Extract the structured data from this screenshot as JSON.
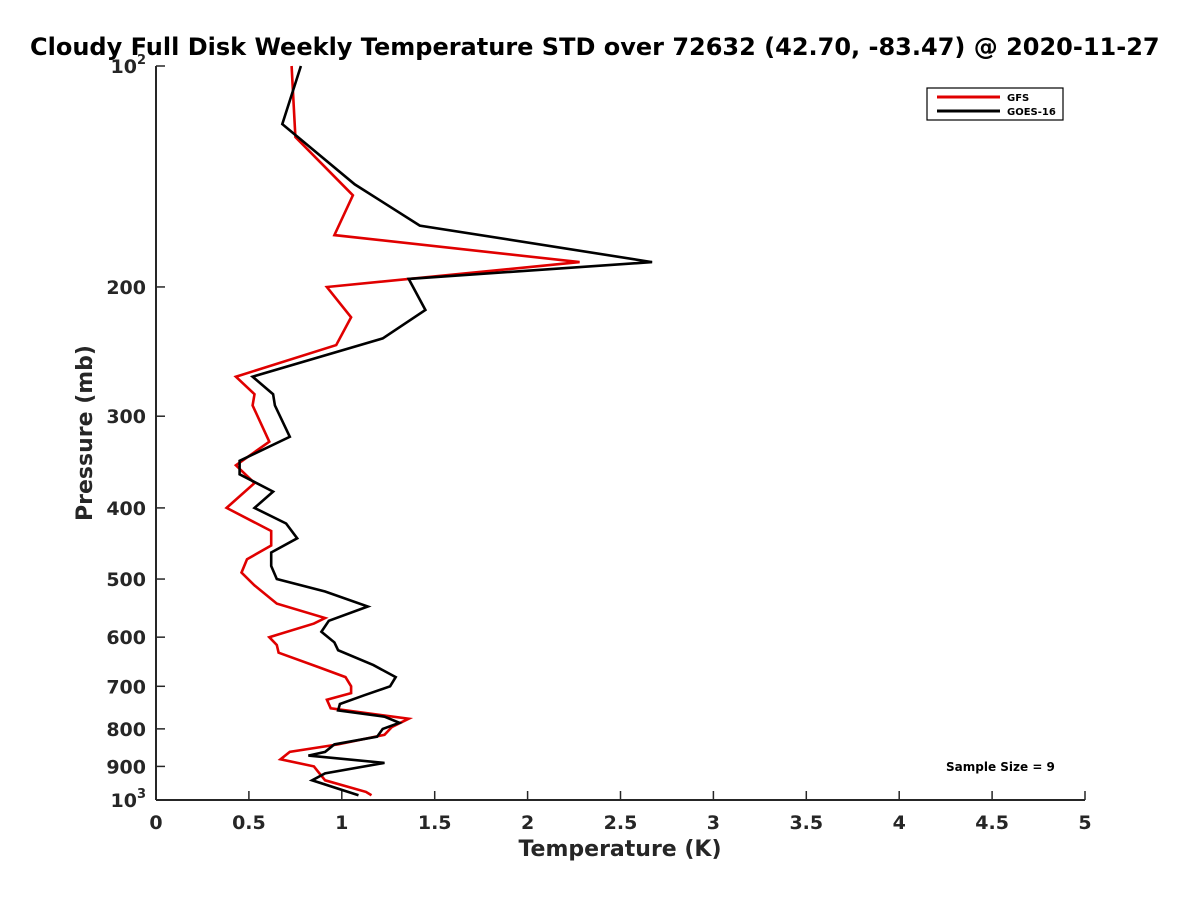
{
  "chart_data": {
    "type": "line",
    "title": "Cloudy Full Disk Weekly Temperature STD over 72632 (42.70, -83.47) @ 2020-11-27",
    "xlabel": "Temperature (K)",
    "ylabel": "Pressure (mb)",
    "xlim": [
      0,
      5
    ],
    "ylim": [
      1000,
      100
    ],
    "y_scale": "log",
    "y_reversed": true,
    "x_ticks": [
      0,
      0.5,
      1,
      1.5,
      2,
      2.5,
      3,
      3.5,
      4,
      4.5,
      5
    ],
    "x_tick_labels": [
      "0",
      "0.5",
      "1",
      "1.5",
      "2",
      "2.5",
      "3",
      "3.5",
      "4",
      "4.5",
      "5"
    ],
    "y_ticks": [
      {
        "value": 100,
        "label": "10",
        "sup": "2"
      },
      {
        "value": 200,
        "label": "200"
      },
      {
        "value": 300,
        "label": "300"
      },
      {
        "value": 400,
        "label": "400"
      },
      {
        "value": 500,
        "label": "500"
      },
      {
        "value": 600,
        "label": "600"
      },
      {
        "value": 700,
        "label": "700"
      },
      {
        "value": 800,
        "label": "800"
      },
      {
        "value": 900,
        "label": "900"
      },
      {
        "value": 1000,
        "label": "10",
        "sup": "3"
      }
    ],
    "grid": false,
    "legend_position": "top-right",
    "annotation": "Sample Size = 9",
    "series": [
      {
        "name": "GFS",
        "color": "#e00000",
        "points": [
          [
            0.73,
            100
          ],
          [
            0.75,
            125
          ],
          [
            1.06,
            150
          ],
          [
            0.96,
            170
          ],
          [
            2.28,
            185
          ],
          [
            0.92,
            200
          ],
          [
            1.05,
            220
          ],
          [
            0.97,
            240
          ],
          [
            0.43,
            265
          ],
          [
            0.53,
            280
          ],
          [
            0.52,
            290
          ],
          [
            0.61,
            325
          ],
          [
            0.43,
            350
          ],
          [
            0.53,
            370
          ],
          [
            0.38,
            400
          ],
          [
            0.62,
            430
          ],
          [
            0.62,
            450
          ],
          [
            0.49,
            470
          ],
          [
            0.46,
            490
          ],
          [
            0.53,
            510
          ],
          [
            0.65,
            540
          ],
          [
            0.91,
            565
          ],
          [
            0.85,
            575
          ],
          [
            0.61,
            600
          ],
          [
            0.65,
            615
          ],
          [
            0.66,
            630
          ],
          [
            0.88,
            660
          ],
          [
            1.02,
            680
          ],
          [
            1.05,
            700
          ],
          [
            1.05,
            715
          ],
          [
            0.92,
            730
          ],
          [
            0.94,
            750
          ],
          [
            1.36,
            775
          ],
          [
            1.27,
            795
          ],
          [
            1.23,
            815
          ],
          [
            0.98,
            840
          ],
          [
            0.72,
            860
          ],
          [
            0.67,
            880
          ],
          [
            0.85,
            900
          ],
          [
            0.88,
            920
          ],
          [
            0.91,
            940
          ],
          [
            1.13,
            975
          ],
          [
            1.16,
            985
          ]
        ]
      },
      {
        "name": "GOES-16",
        "color": "#000000",
        "points": [
          [
            0.78,
            100
          ],
          [
            0.68,
            120
          ],
          [
            1.07,
            145
          ],
          [
            1.42,
            165
          ],
          [
            2.67,
            185
          ],
          [
            1.36,
            195
          ],
          [
            1.45,
            215
          ],
          [
            1.22,
            235
          ],
          [
            0.52,
            265
          ],
          [
            0.63,
            280
          ],
          [
            0.64,
            290
          ],
          [
            0.72,
            320
          ],
          [
            0.45,
            345
          ],
          [
            0.45,
            360
          ],
          [
            0.63,
            380
          ],
          [
            0.53,
            400
          ],
          [
            0.7,
            420
          ],
          [
            0.76,
            440
          ],
          [
            0.62,
            460
          ],
          [
            0.62,
            480
          ],
          [
            0.65,
            500
          ],
          [
            0.91,
            520
          ],
          [
            1.14,
            545
          ],
          [
            0.93,
            570
          ],
          [
            0.89,
            590
          ],
          [
            0.96,
            610
          ],
          [
            0.98,
            625
          ],
          [
            1.17,
            655
          ],
          [
            1.29,
            680
          ],
          [
            1.26,
            700
          ],
          [
            1.12,
            720
          ],
          [
            0.99,
            740
          ],
          [
            0.98,
            755
          ],
          [
            1.23,
            770
          ],
          [
            1.31,
            785
          ],
          [
            1.22,
            800
          ],
          [
            1.19,
            820
          ],
          [
            0.96,
            840
          ],
          [
            0.91,
            860
          ],
          [
            0.82,
            870
          ],
          [
            1.23,
            890
          ],
          [
            0.91,
            920
          ],
          [
            0.84,
            940
          ],
          [
            1.09,
            985
          ]
        ]
      }
    ]
  }
}
